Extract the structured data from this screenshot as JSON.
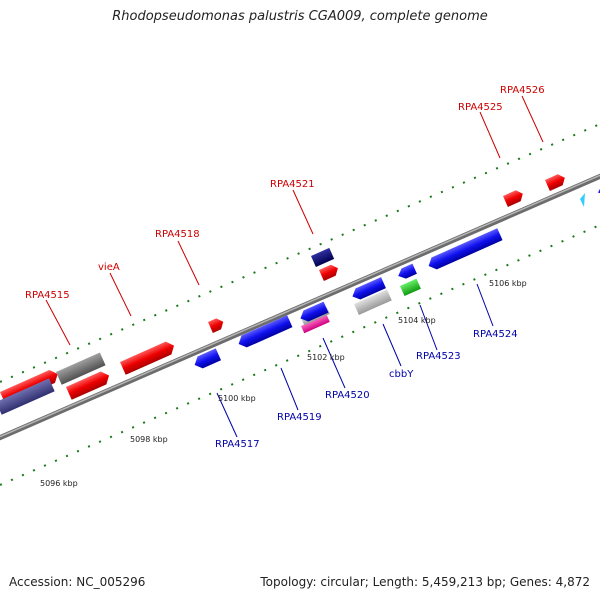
{
  "title": "Rhodopseudomonas palustris CGA009, complete genome",
  "footer": {
    "accession": "Accession: NC_005296",
    "info": "Topology: circular; Length: 5,459,213 bp; Genes: 4,872"
  },
  "colors": {
    "forward_gene": "#ff0000",
    "reverse_gene": "#0000ff",
    "dark_blue_gene": "#000080",
    "slate_gene": "#4b4b8f",
    "gray_gene": "#808080",
    "light_gray_gene": "#c0c0c0",
    "magenta_gene": "#ff1493",
    "green_gene": "#33cc33",
    "tick": "#1a7a1a",
    "backbone": "#8c8c8c",
    "top_label": "#cc0000",
    "bottom_label": "#0000aa"
  },
  "top_labels": [
    "RPA4515",
    "vieA",
    "RPA4518",
    "RPA4521",
    "RPA4525",
    "RPA4526"
  ],
  "bottom_labels": [
    "RPA4517",
    "RPA4519",
    "RPA4520",
    "cbbY",
    "RPA4523",
    "RPA4524"
  ],
  "kbp_labels": [
    "5096 kbp",
    "5098 kbp",
    "5100 kbp",
    "5102 kbp",
    "5104 kbp",
    "5106 kbp"
  ],
  "legend_marker": "arrow-marker-icon"
}
